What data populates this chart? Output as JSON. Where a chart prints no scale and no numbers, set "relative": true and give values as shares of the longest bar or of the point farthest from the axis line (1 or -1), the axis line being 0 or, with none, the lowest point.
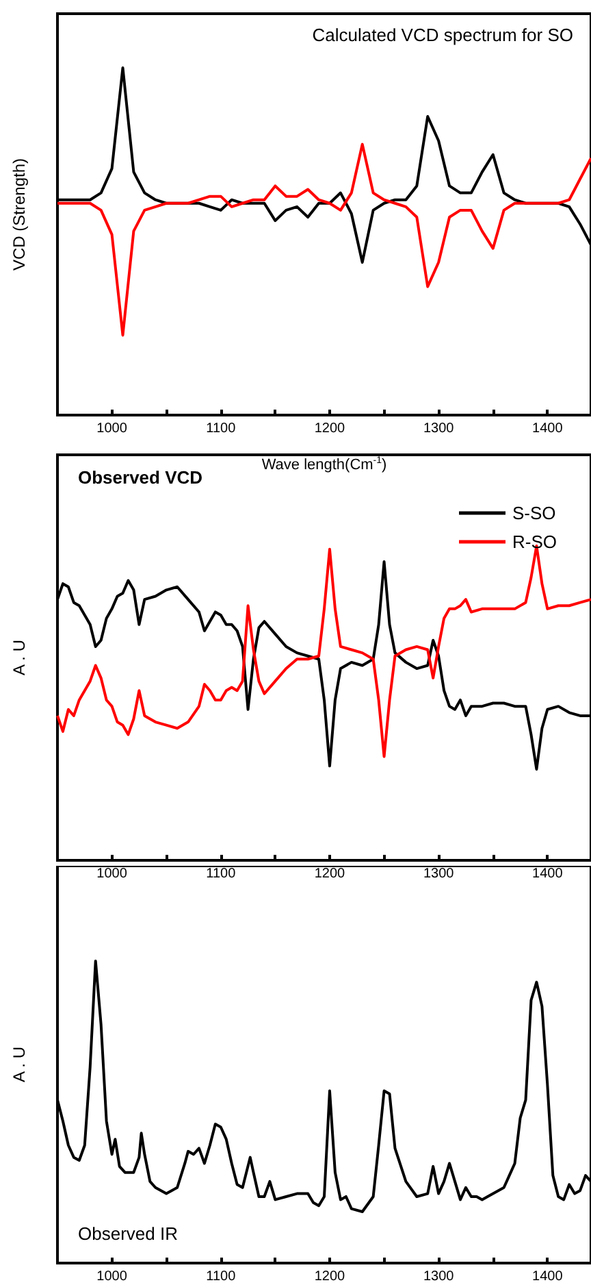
{
  "chart_data": [
    {
      "type": "line",
      "title": "Calculated VCD spectrum for SO",
      "xlabel": "Wave length(Cm$^{-1}$)",
      "ylabel": "VCD (Strength)",
      "relative": true,
      "xlim": [
        950,
        1440
      ],
      "xticks": [
        1000,
        {
          "value": 1050,
          "label": null
        },
        1100,
        {
          "value": 1150,
          "label": null
        },
        1200,
        {
          "value": 1250,
          "label": null
        },
        1300,
        {
          "value": 1350,
          "label": null
        },
        1400
      ],
      "tick_labels": "x",
      "grid": false,
      "marker": "none",
      "line_style": "solid",
      "x": [
        950,
        960,
        970,
        980,
        990,
        1000,
        1010,
        1020,
        1030,
        1040,
        1050,
        1060,
        1070,
        1080,
        1090,
        1100,
        1110,
        1120,
        1130,
        1140,
        1150,
        1160,
        1170,
        1180,
        1190,
        1200,
        1210,
        1220,
        1230,
        1240,
        1250,
        1260,
        1270,
        1280,
        1290,
        1300,
        1310,
        1320,
        1330,
        1340,
        1350,
        1360,
        1370,
        1380,
        1390,
        1400,
        1410,
        1420,
        1430,
        1440
      ],
      "series": [
        {
          "color": "#000000",
          "values": [
            0.62,
            0.62,
            0.62,
            0.62,
            0.64,
            0.71,
            1,
            0.7,
            0.64,
            0.62,
            0.61,
            0.61,
            0.61,
            0.61,
            0.6,
            0.59,
            0.62,
            0.61,
            0.61,
            0.61,
            0.56,
            0.59,
            0.6,
            0.57,
            0.61,
            0.61,
            0.64,
            0.58,
            0.44,
            0.59,
            0.61,
            0.62,
            0.62,
            0.66,
            0.86,
            0.79,
            0.66,
            0.64,
            0.64,
            0.7,
            0.75,
            0.64,
            0.62,
            0.61,
            0.61,
            0.61,
            0.61,
            0.6,
            0.55,
            0.49
          ]
        },
        {
          "color": "#ff0000",
          "values": [
            0.61,
            0.61,
            0.61,
            0.61,
            0.59,
            0.52,
            0.23,
            0.53,
            0.59,
            0.6,
            0.61,
            0.61,
            0.61,
            0.62,
            0.63,
            0.63,
            0.6,
            0.61,
            0.62,
            0.62,
            0.66,
            0.63,
            0.63,
            0.65,
            0.62,
            0.61,
            0.59,
            0.64,
            0.78,
            0.64,
            0.62,
            0.61,
            0.6,
            0.57,
            0.37,
            0.44,
            0.57,
            0.59,
            0.59,
            0.53,
            0.48,
            0.59,
            0.61,
            0.61,
            0.61,
            0.61,
            0.61,
            0.62,
            0.68,
            0.74
          ]
        }
      ]
    },
    {
      "type": "line",
      "title": "Observed VCD",
      "ylabel": "A . U",
      "relative": true,
      "legend": "top right",
      "xlim": [
        950,
        1440
      ],
      "xticks": [
        1000,
        {
          "value": 1050,
          "label": null
        },
        1100,
        {
          "value": 1150,
          "label": null
        },
        1200,
        {
          "value": 1250,
          "label": null
        },
        1300,
        {
          "value": 1350,
          "label": null
        },
        1400
      ],
      "tick_labels": "x",
      "grid": false,
      "marker": "none",
      "line_style": "solid",
      "x": [
        950,
        955,
        960,
        965,
        970,
        975,
        980,
        985,
        990,
        995,
        1000,
        1005,
        1010,
        1015,
        1020,
        1025,
        1030,
        1040,
        1050,
        1060,
        1070,
        1080,
        1085,
        1090,
        1095,
        1100,
        1105,
        1110,
        1115,
        1120,
        1125,
        1130,
        1135,
        1140,
        1150,
        1160,
        1170,
        1180,
        1190,
        1195,
        1200,
        1205,
        1210,
        1220,
        1230,
        1240,
        1245,
        1250,
        1255,
        1260,
        1270,
        1280,
        1290,
        1295,
        1300,
        1305,
        1310,
        1315,
        1320,
        1325,
        1330,
        1340,
        1350,
        1360,
        1370,
        1380,
        1385,
        1390,
        1395,
        1400,
        1410,
        1420,
        1430,
        1440
      ],
      "series": [
        {
          "name": "S-SO",
          "color": "#000000",
          "values": [
            0.83,
            0.88,
            0.87,
            0.82,
            0.81,
            0.78,
            0.75,
            0.68,
            0.7,
            0.77,
            0.8,
            0.84,
            0.85,
            0.89,
            0.86,
            0.75,
            0.83,
            0.84,
            0.86,
            0.87,
            0.83,
            0.79,
            0.73,
            0.76,
            0.79,
            0.78,
            0.75,
            0.75,
            0.73,
            0.68,
            0.48,
            0.64,
            0.74,
            0.76,
            0.72,
            0.68,
            0.66,
            0.65,
            0.64,
            0.51,
            0.3,
            0.51,
            0.61,
            0.63,
            0.62,
            0.64,
            0.75,
            0.95,
            0.75,
            0.66,
            0.63,
            0.61,
            0.62,
            0.7,
            0.65,
            0.54,
            0.49,
            0.48,
            0.51,
            0.46,
            0.49,
            0.49,
            0.5,
            0.5,
            0.49,
            0.49,
            0.4,
            0.29,
            0.42,
            0.48,
            0.49,
            0.47,
            0.46,
            0.46
          ]
        },
        {
          "name": "R-SO",
          "color": "#ff0000",
          "values": [
            0.46,
            0.41,
            0.48,
            0.46,
            0.51,
            0.54,
            0.57,
            0.62,
            0.58,
            0.51,
            0.49,
            0.44,
            0.43,
            0.4,
            0.45,
            0.54,
            0.46,
            0.44,
            0.43,
            0.42,
            0.44,
            0.49,
            0.56,
            0.54,
            0.51,
            0.51,
            0.54,
            0.55,
            0.54,
            0.57,
            0.81,
            0.67,
            0.57,
            0.53,
            0.57,
            0.61,
            0.64,
            0.64,
            0.65,
            0.8,
            0.99,
            0.8,
            0.68,
            0.67,
            0.66,
            0.64,
            0.51,
            0.33,
            0.51,
            0.65,
            0.67,
            0.68,
            0.67,
            0.58,
            0.68,
            0.77,
            0.8,
            0.8,
            0.81,
            0.83,
            0.79,
            0.8,
            0.8,
            0.8,
            0.8,
            0.82,
            0.9,
            1,
            0.88,
            0.8,
            0.81,
            0.81,
            0.82,
            0.83
          ]
        }
      ]
    },
    {
      "type": "line",
      "title": "Observed IR",
      "ylabel": "A . U",
      "relative": true,
      "xlim": [
        950,
        1440
      ],
      "xticks": [
        1000,
        {
          "value": 1050,
          "label": null
        },
        1100,
        {
          "value": 1150,
          "label": null
        },
        1200,
        {
          "value": 1250,
          "label": null
        },
        1300,
        {
          "value": 1350,
          "label": null
        },
        1400
      ],
      "tick_labels": "x",
      "grid": false,
      "marker": "none",
      "line_style": "solid",
      "x": [
        950,
        955,
        960,
        965,
        970,
        975,
        980,
        985,
        990,
        995,
        1000,
        1003,
        1007,
        1012,
        1020,
        1025,
        1027,
        1030,
        1035,
        1040,
        1050,
        1060,
        1067,
        1070,
        1075,
        1080,
        1085,
        1090,
        1095,
        1100,
        1105,
        1110,
        1115,
        1120,
        1127,
        1130,
        1135,
        1140,
        1145,
        1150,
        1160,
        1170,
        1180,
        1185,
        1190,
        1195,
        1200,
        1205,
        1210,
        1215,
        1220,
        1230,
        1240,
        1245,
        1250,
        1255,
        1260,
        1270,
        1280,
        1290,
        1295,
        1300,
        1305,
        1310,
        1315,
        1320,
        1325,
        1330,
        1335,
        1340,
        1345,
        1360,
        1365,
        1370,
        1375,
        1380,
        1385,
        1390,
        1395,
        1400,
        1405,
        1410,
        1415,
        1420,
        1425,
        1430,
        1435,
        1440
      ],
      "series": [
        {
          "color": "#000000",
          "values": [
            0.54,
            0.47,
            0.39,
            0.35,
            0.34,
            0.39,
            0.65,
            1,
            0.79,
            0.47,
            0.36,
            0.41,
            0.32,
            0.3,
            0.3,
            0.35,
            0.43,
            0.36,
            0.27,
            0.25,
            0.23,
            0.25,
            0.33,
            0.37,
            0.36,
            0.38,
            0.33,
            0.39,
            0.46,
            0.45,
            0.41,
            0.33,
            0.26,
            0.25,
            0.35,
            0.3,
            0.22,
            0.22,
            0.27,
            0.21,
            0.22,
            0.23,
            0.23,
            0.2,
            0.19,
            0.22,
            0.57,
            0.3,
            0.21,
            0.22,
            0.18,
            0.17,
            0.22,
            0.39,
            0.57,
            0.56,
            0.38,
            0.27,
            0.22,
            0.23,
            0.32,
            0.23,
            0.27,
            0.33,
            0.27,
            0.21,
            0.25,
            0.22,
            0.22,
            0.21,
            0.22,
            0.25,
            0.29,
            0.33,
            0.48,
            0.54,
            0.87,
            0.93,
            0.85,
            0.59,
            0.29,
            0.22,
            0.21,
            0.26,
            0.23,
            0.24,
            0.29,
            0.27
          ]
        }
      ]
    }
  ]
}
